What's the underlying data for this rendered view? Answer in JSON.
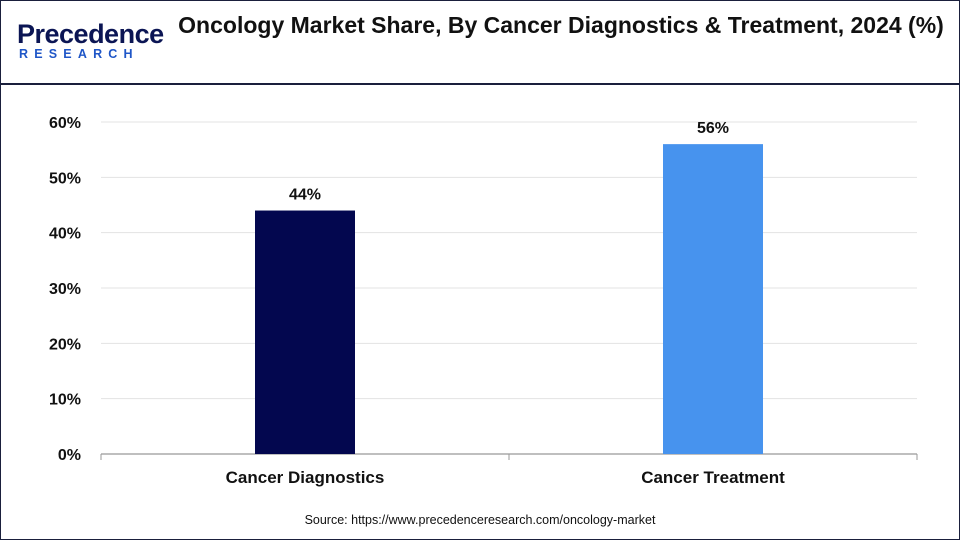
{
  "brand": {
    "logo_main": "Precedence",
    "logo_sub": "RESEARCH"
  },
  "source_text": "Source: https://www.precedenceresearch.com/oncology-market",
  "colors": {
    "border": "#1a1f3c",
    "gridline": "#e3e3e3",
    "axis": "#999999"
  },
  "chart_data": {
    "type": "bar",
    "title": "Oncology Market Share, By Cancer Diagnostics & Treatment, 2024 (%)",
    "xlabel": "",
    "ylabel": "",
    "categories": [
      "Cancer Diagnostics",
      "Cancer Treatment"
    ],
    "values": [
      44,
      56
    ],
    "data_labels": [
      "44%",
      "56%"
    ],
    "bar_colors": [
      "#03074f",
      "#4793ee"
    ],
    "ylim": [
      0,
      60
    ],
    "yticks": [
      0,
      10,
      20,
      30,
      40,
      50,
      60
    ],
    "ytick_labels": [
      "0%",
      "10%",
      "20%",
      "30%",
      "40%",
      "50%",
      "60%"
    ],
    "grid": true,
    "legend": "none"
  }
}
